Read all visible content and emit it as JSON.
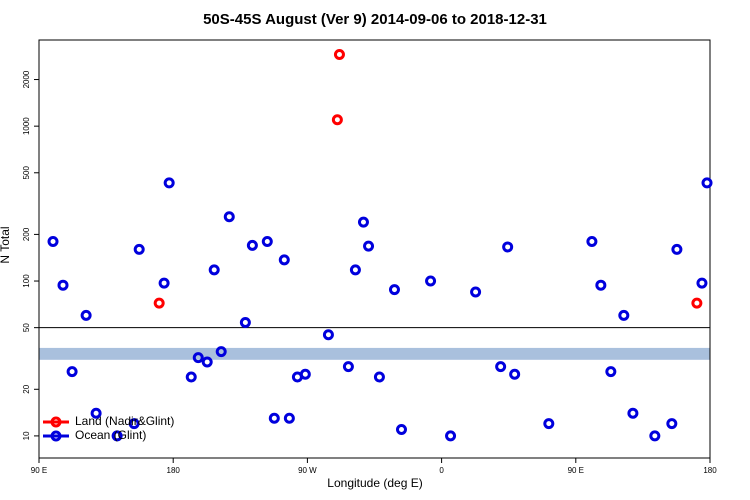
{
  "chart_data": {
    "type": "scatter",
    "title": "50S-45S August (Ver 9)   2014-09-06 to 2018-12-31",
    "x_label": "Longitude (deg E)",
    "y_label": "N Total",
    "xlim": [
      90,
      540
    ],
    "xticks": [
      {
        "value": 90,
        "label": "90 E"
      },
      180,
      {
        "value": 270,
        "label": "90 W"
      },
      {
        "value": 360,
        "label": "0"
      },
      {
        "value": 450,
        "label": "90 E"
      },
      {
        "value": 540,
        "label": "180"
      }
    ],
    "ylim": [
      7.2,
      3600
    ],
    "log_y": true,
    "yticks": [
      10,
      20,
      50,
      100,
      200,
      500,
      1000,
      2000
    ],
    "hline": 50,
    "band": [
      31,
      37
    ],
    "band_color": "#a9c0dd",
    "legend": "lower left",
    "series": [
      {
        "name": "Land (Nadir&Glint)",
        "color": "#ff0000",
        "x": [
          291.5,
          290.1,
          170.6,
          531.2
        ],
        "y": [
          2900,
          1100,
          72,
          72
        ]
      },
      {
        "name": "Ocean (Glint)",
        "color": "#0000dd",
        "x": [
          99.4,
          106.1,
          112.2,
          121.6,
          128.3,
          142.4,
          153.8,
          157.2,
          173.9,
          177.3,
          192.1,
          196.8,
          202.8,
          207.5,
          212.2,
          217.6,
          228.4,
          233.1,
          243.1,
          247.8,
          254.5,
          257.9,
          263.3,
          268.6,
          284.1,
          297.5,
          302.2,
          307.6,
          311.0,
          318.3,
          328.4,
          333.1,
          352.6,
          366.0,
          382.8,
          399.6,
          404.3,
          409.0,
          431.9,
          460.8,
          466.8,
          473.5,
          482.2,
          488.3,
          503.0,
          514.4,
          517.8,
          534.6,
          538.0
        ],
        "y": [
          180,
          94,
          26,
          60,
          14,
          10,
          12,
          160,
          97,
          430,
          24,
          32,
          30,
          118,
          35,
          260,
          54,
          170,
          180,
          13,
          137,
          13,
          24,
          25,
          45,
          28,
          118,
          240,
          168,
          24,
          88,
          11,
          100,
          10,
          85,
          28,
          166,
          25,
          12,
          180,
          94,
          26,
          60,
          14,
          10,
          12,
          160,
          97,
          430
        ]
      }
    ]
  }
}
